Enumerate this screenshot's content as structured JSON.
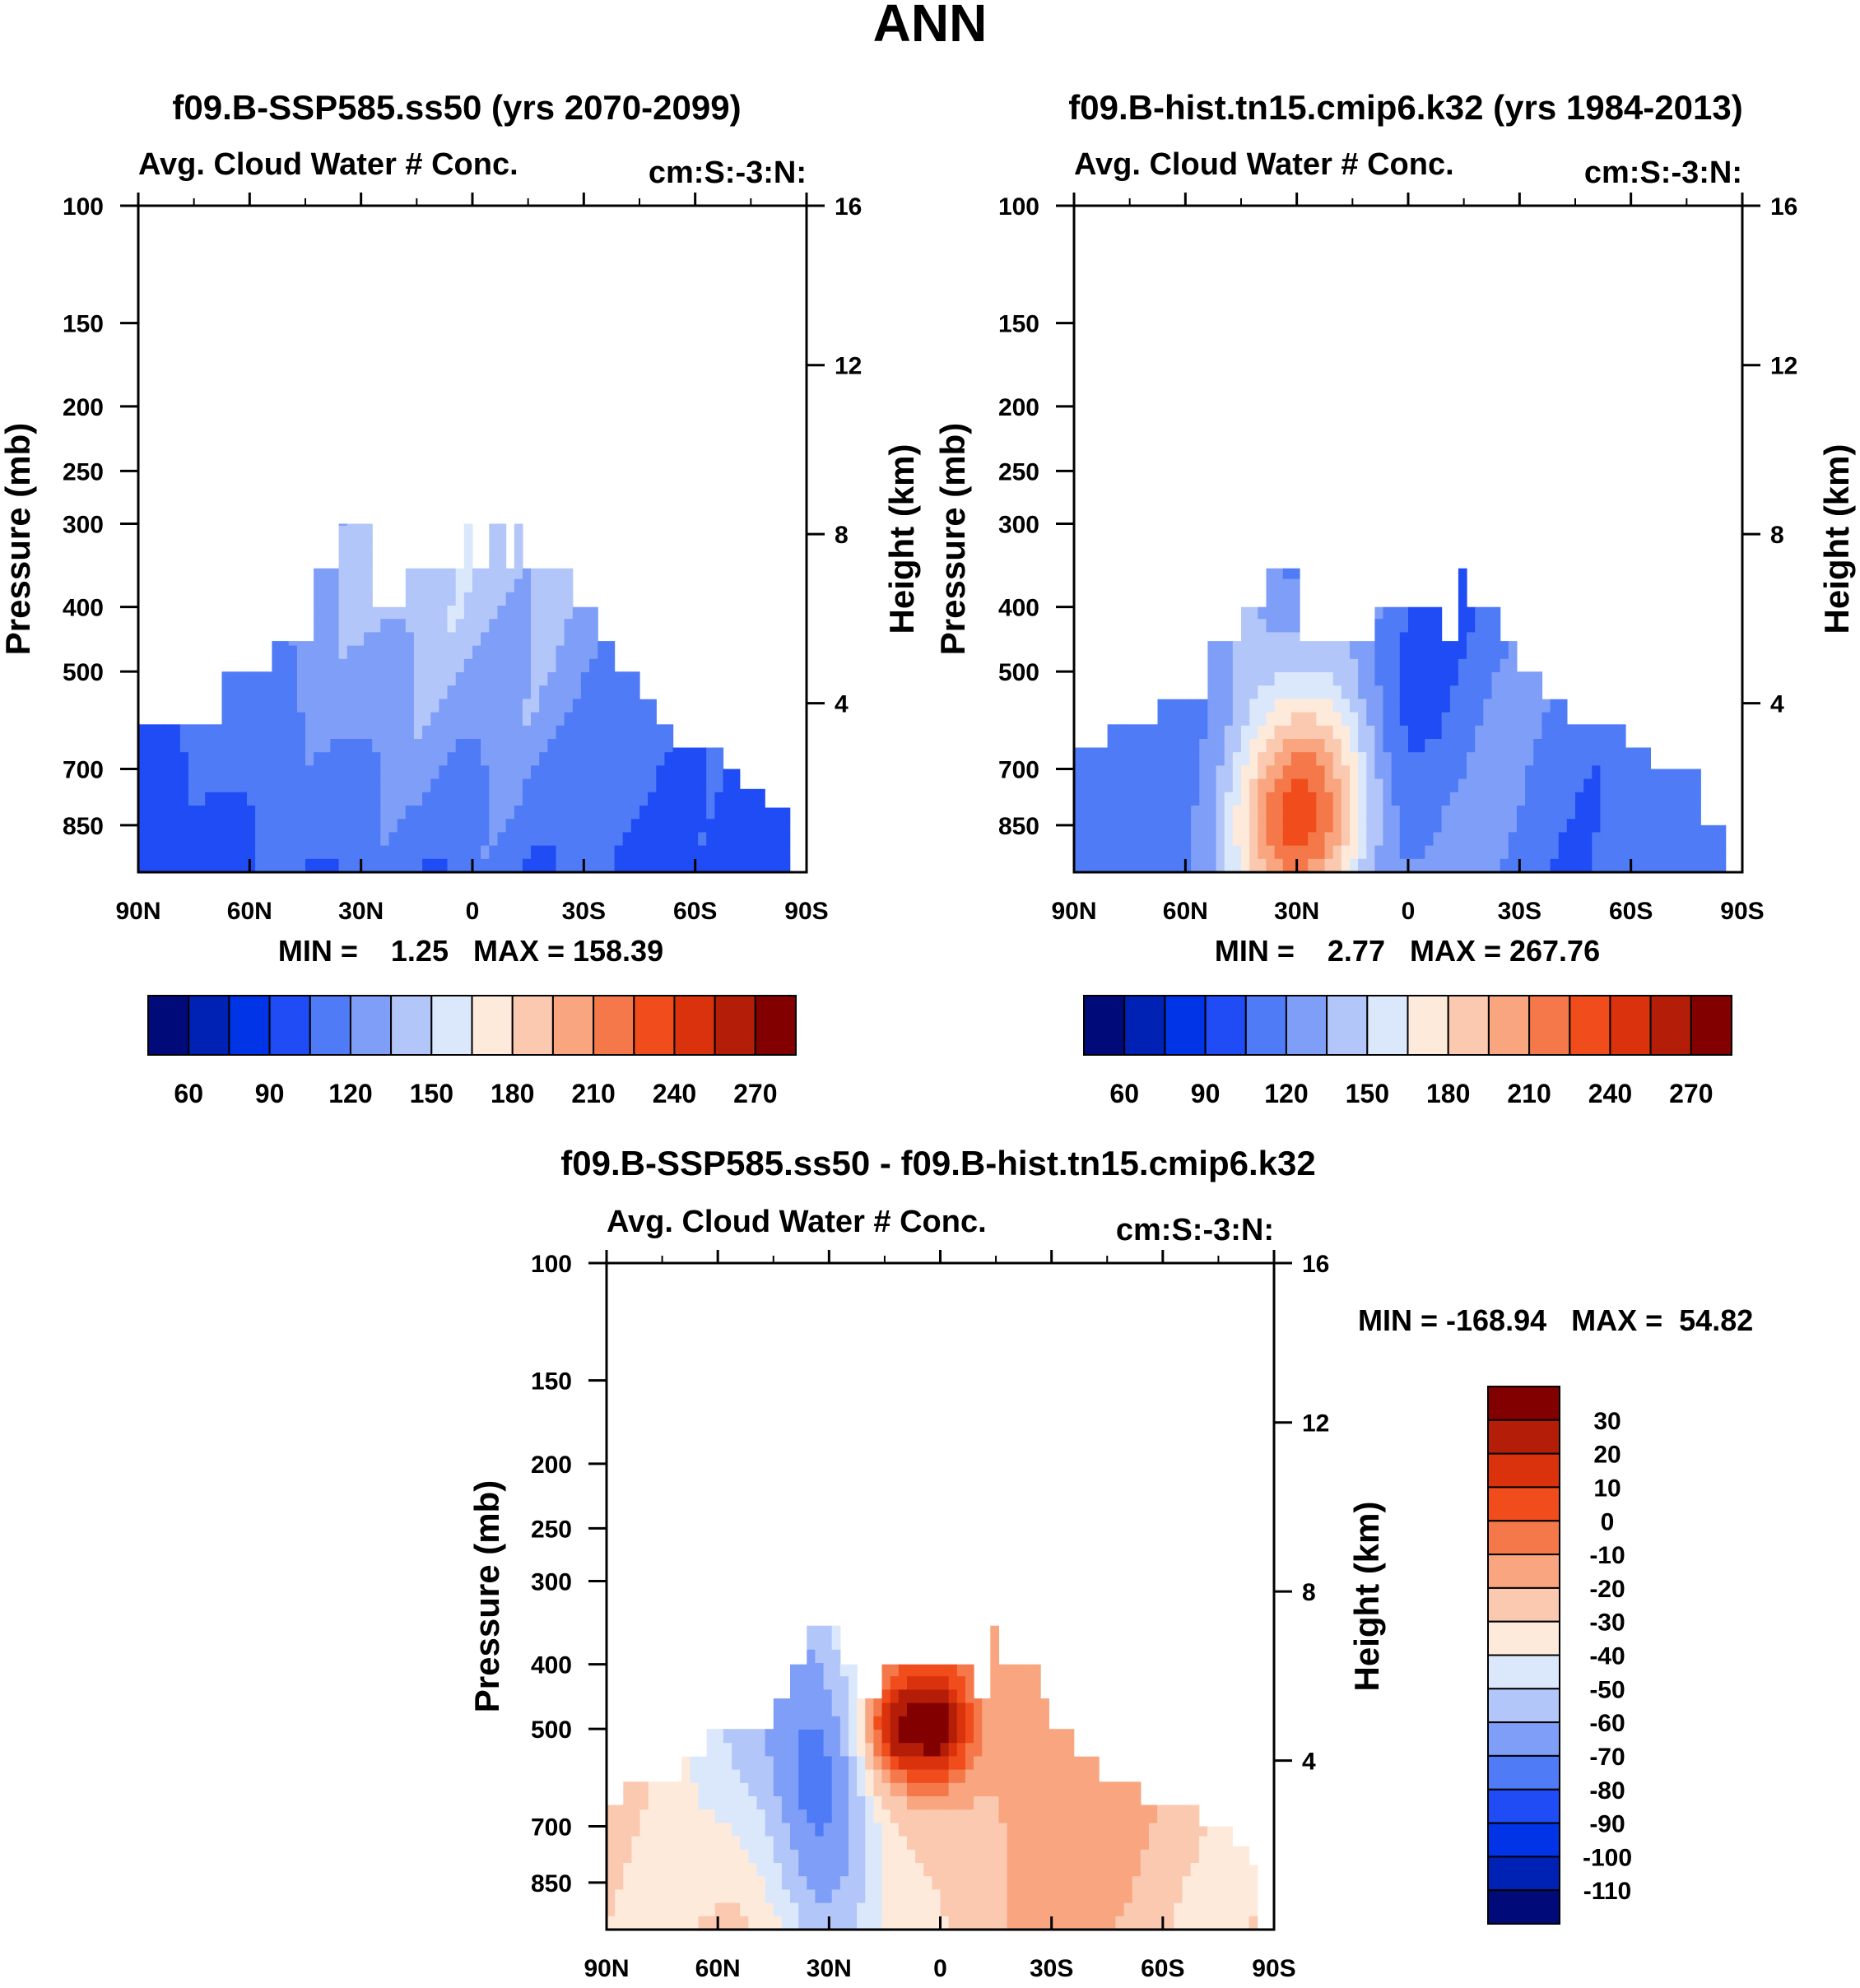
{
  "page_title": "ANN",
  "palettes": {
    "abs": [
      "#000a78",
      "#0022b4",
      "#0034e6",
      "#1f4cf5",
      "#4f7bf6",
      "#7e9ef7",
      "#b3c6f9",
      "#dbe8fb",
      "#fdeadb",
      "#fbc8b0",
      "#f8a580",
      "#f5784a",
      "#f04c1c",
      "#d9320c",
      "#b41e08",
      "#820000"
    ],
    "diff": [
      "#000a78",
      "#0022b4",
      "#0034e6",
      "#1f4cf5",
      "#4f7bf6",
      "#7e9ef7",
      "#b3c6f9",
      "#dbe8fb",
      "#fdeadb",
      "#fbc8b0",
      "#f8a580",
      "#f5784a",
      "#f04c1c",
      "#d9320c",
      "#b41e08",
      "#820000"
    ]
  },
  "chart_data": [
    {
      "type": "contour",
      "title": "f09.B-SSP585.ss50 (yrs 2070-2099)",
      "subtitle_left": "Avg. Cloud Water # Conc.",
      "subtitle_right": "cm:S:-3:N:",
      "ylabel_left": "Pressure (mb)",
      "ylabel_right": "Height (km)",
      "x_ticks": [
        "90N",
        "60N",
        "30N",
        "0",
        "30S",
        "60S",
        "90S"
      ],
      "p_ticks": [
        "100",
        "150",
        "200",
        "250",
        "300",
        "400",
        "500",
        "700",
        "850"
      ],
      "h_ticks": [
        "16",
        "12",
        "8",
        "4"
      ],
      "stats": "MIN =    1.25   MAX = 158.39",
      "colorbar_labels": [
        "60",
        "90",
        "120",
        "150",
        "180",
        "210",
        "240",
        "270"
      ],
      "field": {
        "base": 3,
        "hot": [
          [
            -5,
            0.45,
            60,
            0.55,
            4.0
          ]
        ],
        "top": [
          [
            -90,
            -82,
            600
          ],
          [
            -82,
            -68,
            600
          ],
          [
            -68,
            -55,
            500
          ],
          [
            -55,
            -42,
            450
          ],
          [
            -42,
            -36,
            350
          ],
          [
            -36,
            -30,
            300
          ],
          [
            -30,
            -26,
            300
          ],
          [
            -26,
            -18,
            400
          ],
          [
            -18,
            0,
            350
          ],
          [
            0,
            6,
            350
          ],
          [
            6,
            12,
            350
          ],
          [
            12,
            20,
            350
          ],
          [
            20,
            28,
            350
          ],
          [
            28,
            33,
            400
          ],
          [
            33,
            38,
            450
          ],
          [
            38,
            45,
            500
          ],
          [
            45,
            50,
            550
          ],
          [
            50,
            55,
            600
          ],
          [
            55,
            62,
            650
          ],
          [
            62,
            68,
            650
          ],
          [
            68,
            72,
            700
          ],
          [
            72,
            78,
            750
          ],
          [
            78,
            85,
            800
          ]
        ],
        "spikes": [
          [
            -3,
            -1,
            300
          ],
          [
            5,
            8,
            300
          ],
          [
            12,
            14,
            300
          ]
        ]
      }
    },
    {
      "type": "contour",
      "title": "f09.B-hist.tn15.cmip6.k32 (yrs 1984-2013)",
      "subtitle_left": "Avg. Cloud Water # Conc.",
      "subtitle_right": "cm:S:-3:N:",
      "ylabel_left": "Pressure (mb)",
      "ylabel_right": "Height (km)",
      "x_ticks": [
        "90N",
        "60N",
        "30N",
        "0",
        "30S",
        "60S",
        "90S"
      ],
      "p_ticks": [
        "100",
        "150",
        "200",
        "250",
        "300",
        "400",
        "500",
        "700",
        "850"
      ],
      "h_ticks": [
        "16",
        "12",
        "8",
        "4"
      ],
      "stats": "MIN =    2.77   MAX = 267.76",
      "colorbar_labels": [
        "60",
        "90",
        "120",
        "150",
        "180",
        "210",
        "240",
        "270"
      ],
      "field": {
        "base": 4,
        "hot": [
          [
            -28,
            0.92,
            20,
            0.18,
            7.5
          ],
          [
            -45,
            0.6,
            12,
            0.15,
            2.0
          ]
        ],
        "top": [
          [
            -90,
            -82,
            650
          ],
          [
            -82,
            -68,
            600
          ],
          [
            -68,
            -55,
            550
          ],
          [
            -55,
            -45,
            450
          ],
          [
            -45,
            -38,
            400
          ],
          [
            -38,
            -30,
            350
          ],
          [
            -30,
            -22,
            450
          ],
          [
            -22,
            -10,
            450
          ],
          [
            -10,
            0,
            400
          ],
          [
            0,
            8,
            400
          ],
          [
            8,
            16,
            450
          ],
          [
            16,
            24,
            400
          ],
          [
            24,
            30,
            450
          ],
          [
            30,
            36,
            500
          ],
          [
            36,
            42,
            550
          ],
          [
            42,
            50,
            600
          ],
          [
            50,
            58,
            600
          ],
          [
            58,
            65,
            650
          ],
          [
            65,
            78,
            700
          ],
          [
            78,
            85,
            850
          ]
        ],
        "spikes": [
          [
            13,
            15,
            350
          ]
        ]
      }
    },
    {
      "type": "contour",
      "title": "f09.B-SSP585.ss50 - f09.B-hist.tn15.cmip6.k32",
      "subtitle_left": "Avg. Cloud Water # Conc.",
      "subtitle_right": "cm:S:-3:N:",
      "ylabel_left": "Pressure (mb)",
      "ylabel_right": "Height (km)",
      "x_ticks": [
        "90N",
        "60N",
        "30N",
        "0",
        "30S",
        "60S",
        "90S"
      ],
      "p_ticks": [
        "100",
        "150",
        "200",
        "250",
        "300",
        "400",
        "500",
        "700",
        "850"
      ],
      "h_ticks": [
        "16",
        "12",
        "8",
        "4"
      ],
      "stats": "MIN = -168.94   MAX =  54.82",
      "colorbar_labels": [
        "30",
        "20",
        "10",
        "0",
        "-10",
        "-20",
        "-30",
        "-40",
        "-50",
        "-60",
        "-70",
        "-80",
        "-90",
        "-100",
        "-110"
      ],
      "field": {
        "base": 9,
        "hot": [
          [
            -12,
            0.7,
            8,
            0.08,
            5.0
          ],
          [
            0,
            0.7,
            8,
            0.08,
            5.0
          ],
          [
            18,
            0.55,
            30,
            0.35,
            2.0
          ]
        ],
        "cold": [
          [
            -32,
            0.8,
            16,
            0.3,
            -5.5
          ],
          [
            -55,
            0.6,
            16,
            0.25,
            -1.8
          ],
          [
            -20,
            0.15,
            10,
            0.1,
            -2.5
          ]
        ],
        "top": [
          [
            -90,
            -85,
            650
          ],
          [
            -85,
            -70,
            600
          ],
          [
            -70,
            -62,
            550
          ],
          [
            -62,
            -45,
            500
          ],
          [
            -45,
            -40,
            450
          ],
          [
            -40,
            -35,
            400
          ],
          [
            -35,
            -28,
            350
          ],
          [
            -28,
            -22,
            400
          ],
          [
            -22,
            -15,
            450
          ],
          [
            -15,
            -7,
            400
          ],
          [
            -7,
            8,
            400
          ],
          [
            8,
            14,
            450
          ],
          [
            14,
            16,
            350
          ],
          [
            16,
            26,
            400
          ],
          [
            26,
            30,
            450
          ],
          [
            30,
            35,
            500
          ],
          [
            35,
            42,
            550
          ],
          [
            42,
            55,
            600
          ],
          [
            55,
            62,
            650
          ],
          [
            62,
            70,
            650
          ],
          [
            70,
            78,
            700
          ],
          [
            78,
            83,
            750
          ],
          [
            83,
            85,
            800
          ]
        ],
        "spikes": []
      }
    }
  ]
}
